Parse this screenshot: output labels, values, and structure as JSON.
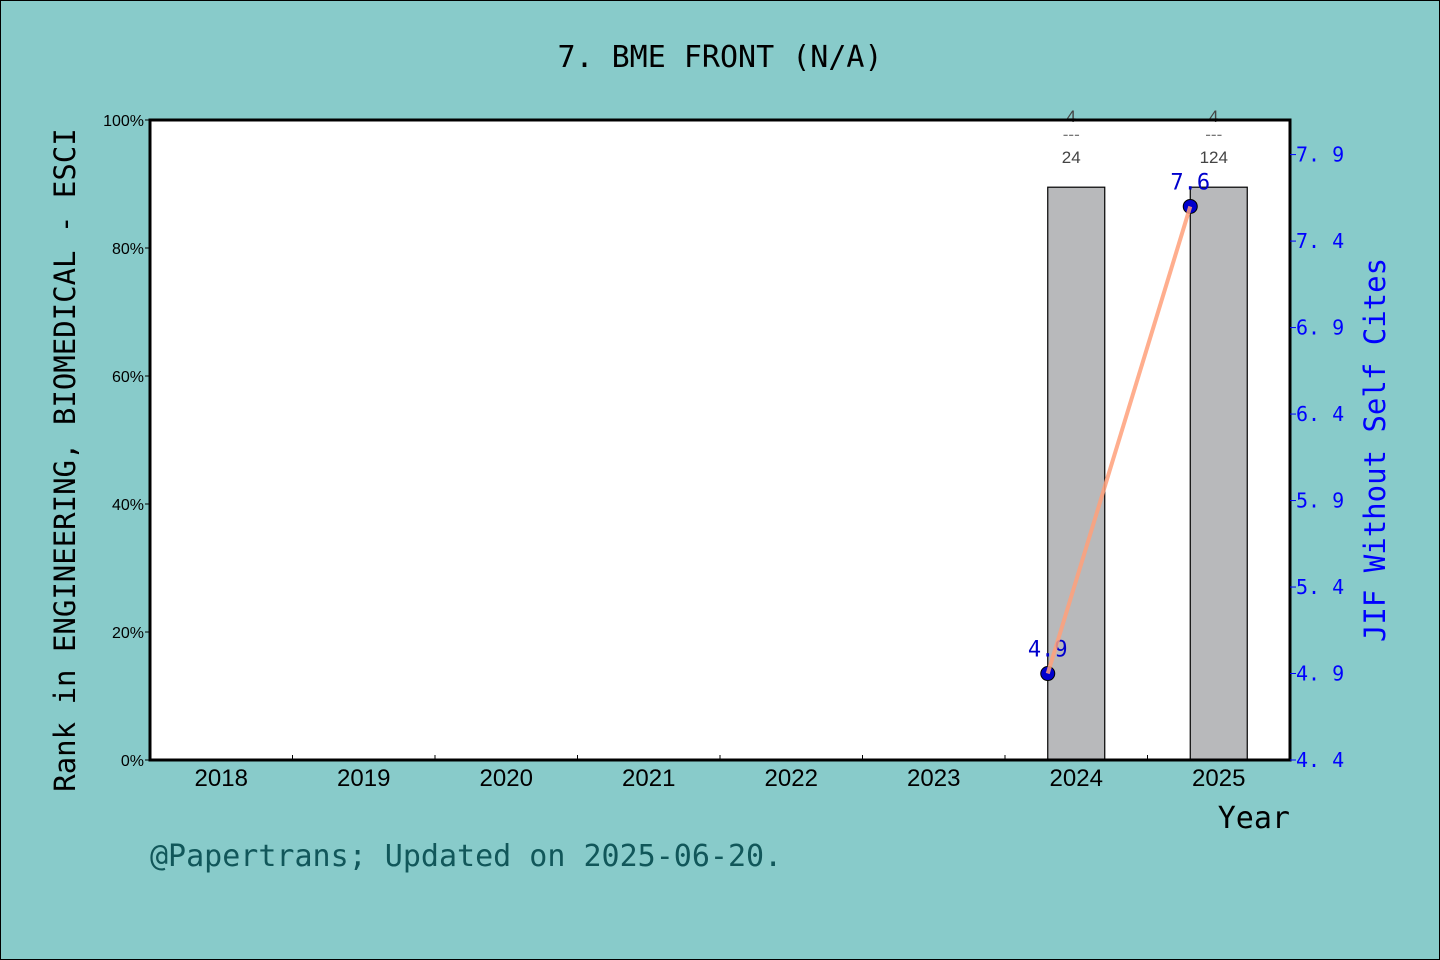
{
  "chart_data": {
    "type": "bar+line",
    "title": "7.  BME FRONT (N/A)",
    "xlabel": "Year",
    "ylabel_left": "Rank in ENGINEERING, BIOMEDICAL - ESCI",
    "ylabel_right": "JIF Without Self Cites",
    "categories": [
      "2018",
      "2019",
      "2020",
      "2021",
      "2022",
      "2023",
      "2024",
      "2025"
    ],
    "left_axis": {
      "ylim": [
        0,
        100
      ],
      "ticks": [
        "0%",
        "20%",
        "40%",
        "60%",
        "80%",
        "100%"
      ]
    },
    "right_axis": {
      "ylim": [
        4.4,
        8.1
      ],
      "ticks": [
        "4.4",
        "4.9",
        "5.4",
        "5.9",
        "6.4",
        "6.9",
        "7.4",
        "7.9"
      ]
    },
    "bars": [
      {
        "year": "2024",
        "value": 89.5,
        "label_top": "4",
        "label_sep": "---",
        "label_bottom": "24"
      },
      {
        "year": "2025",
        "value": 89.5,
        "label_top": "4",
        "label_sep": "---",
        "label_bottom": "124"
      }
    ],
    "line": {
      "points": [
        {
          "year": "2024",
          "value": 4.9,
          "label": "4.9"
        },
        {
          "year": "2025",
          "value": 7.6,
          "label": "7.6"
        }
      ]
    },
    "colors": {
      "bar": "#b8b9bb",
      "line": "#ffa07a",
      "point": "#0000cd",
      "right_axis": "#0000ff",
      "background": "#88cbca",
      "footer": "#11575a"
    },
    "grid": false
  },
  "footer": "@Papertrans; Updated on 2025-06-20."
}
